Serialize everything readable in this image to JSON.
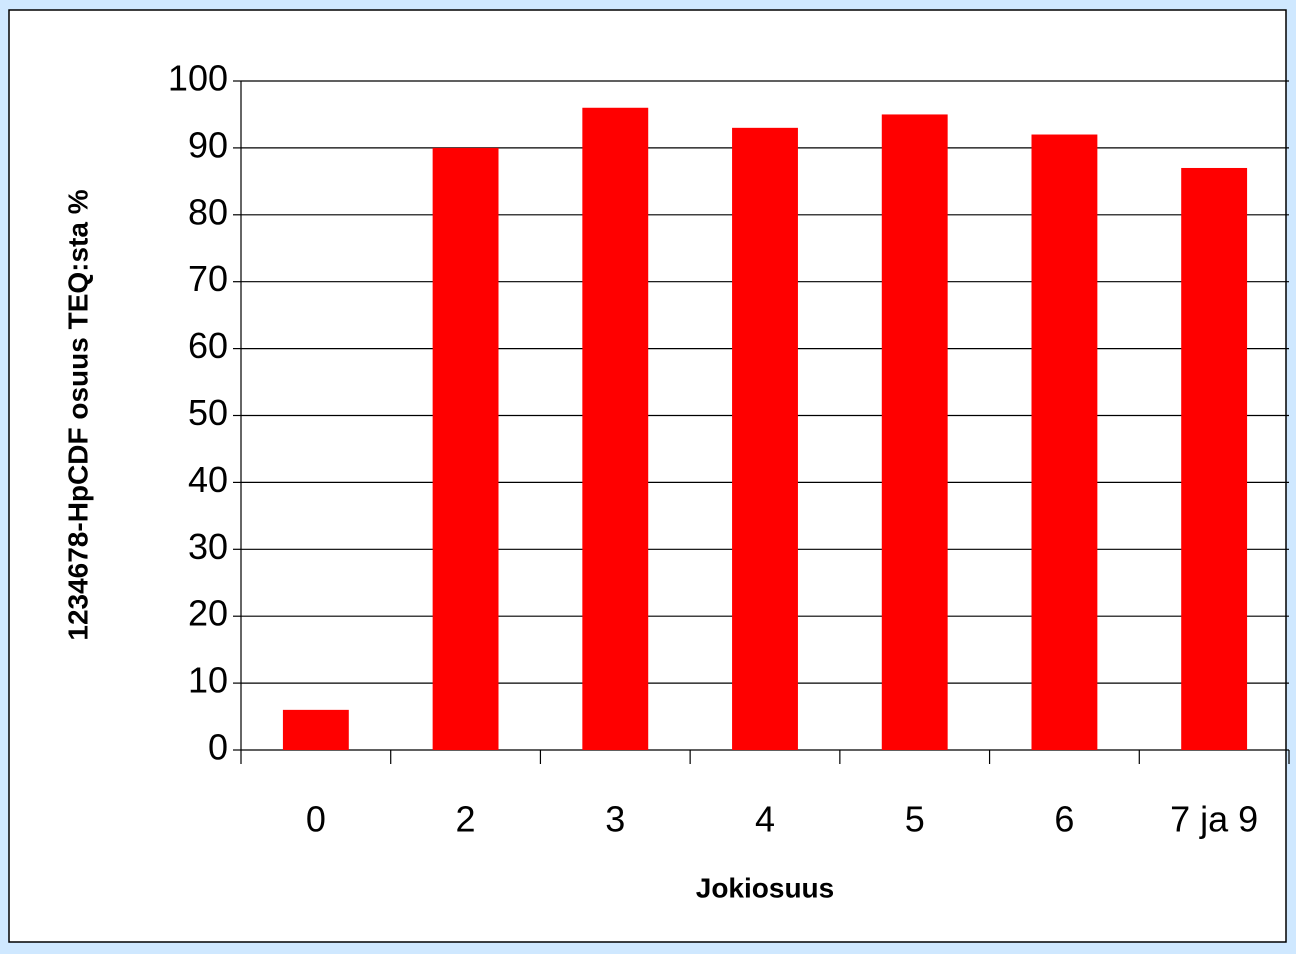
{
  "chart_data": {
    "type": "bar",
    "x_label": "Jokiosuus",
    "y_label": "1234678-HpCDF osuus TEQ:sta %",
    "categories": [
      "0",
      "2",
      "3",
      "4",
      "5",
      "6",
      "7 ja 9"
    ],
    "values": [
      6,
      90,
      96,
      93,
      95,
      92,
      87
    ],
    "color": "#ff0000",
    "ylim": [
      0,
      100
    ],
    "yticks": [
      0,
      10,
      20,
      30,
      40,
      50,
      60,
      70,
      80,
      90,
      100
    ],
    "grid": true
  }
}
